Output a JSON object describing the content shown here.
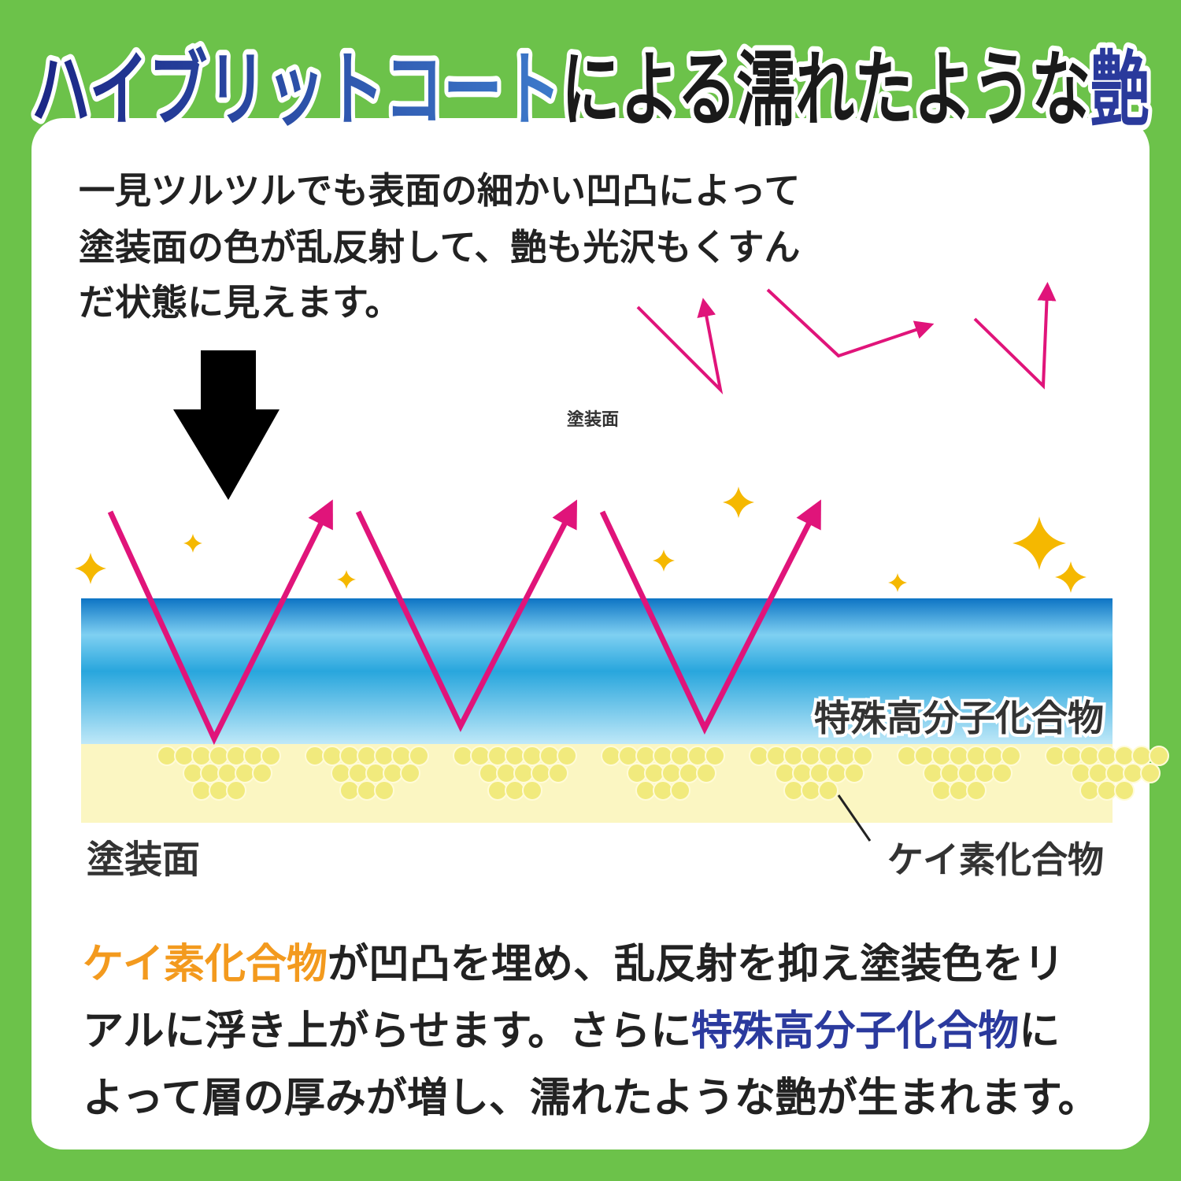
{
  "title": {
    "part1": "ハイブリットコート",
    "part2": "による濡れたような",
    "part3": "艶"
  },
  "intro": {
    "lines": [
      "一見ツルツルでも表面の細かい凹凸によって",
      "塗装面の色が乱反射して、艶も光沢もくすん",
      "だ状態に見えます。"
    ]
  },
  "small_diagram": {
    "surface_label": "塗装面"
  },
  "main_diagram": {
    "polymer_label": "特殊高分子化合物",
    "surface_label": "塗装面",
    "silicon_label": "ケイ素化合物"
  },
  "conclusion": {
    "line1": {
      "highlight": "ケイ素化合物",
      "text": "が凹凸を埋め、乱反射を抑え塗装色をリ"
    },
    "line2": {
      "text": "アルに浮き上がらせます。さらに",
      "highlight": "特殊高分子化合物",
      "tail": "に"
    },
    "line3": {
      "text": "よって層の厚みが増し、濡れたような艶が生まれます。"
    }
  }
}
